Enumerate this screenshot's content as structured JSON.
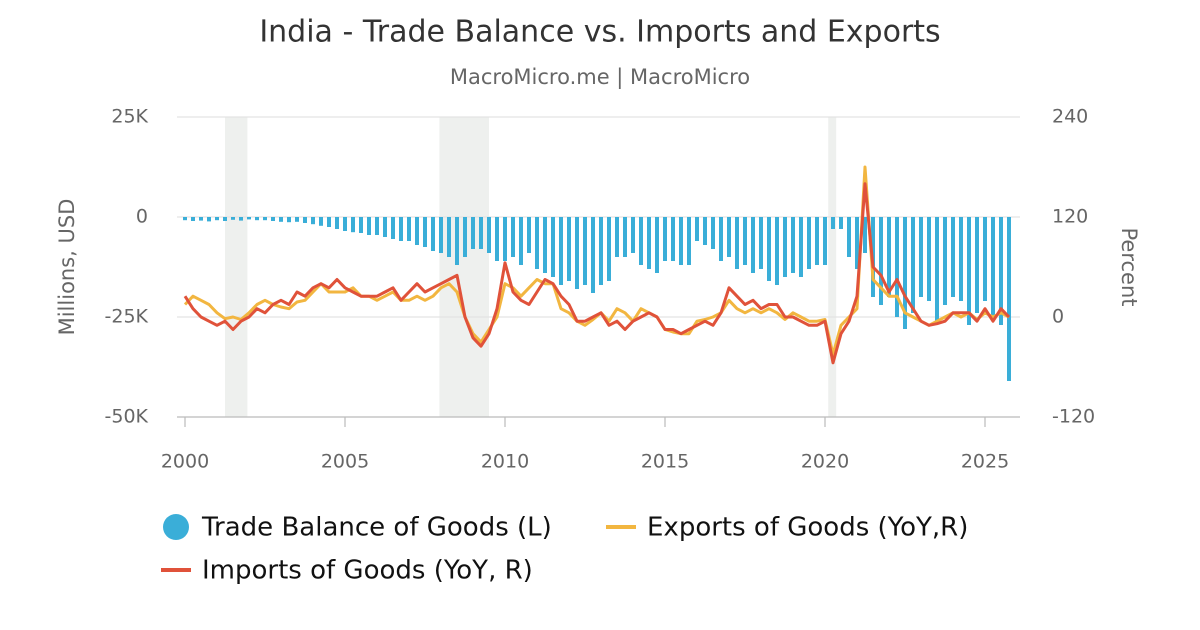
{
  "chart_data": {
    "type": "bar-line",
    "title": "India - Trade Balance vs. Imports and Exports",
    "subtitle": "MacroMicro.me | MacroMicro",
    "y_label": "Millions, USD",
    "y2_label": "Percent",
    "x": [
      2000,
      2000.25,
      2000.5,
      2000.75,
      2001,
      2001.25,
      2001.5,
      2001.75,
      2002,
      2002.25,
      2002.5,
      2002.75,
      2003,
      2003.25,
      2003.5,
      2003.75,
      2004,
      2004.25,
      2004.5,
      2004.75,
      2005,
      2005.25,
      2005.5,
      2005.75,
      2006,
      2006.25,
      2006.5,
      2006.75,
      2007,
      2007.25,
      2007.5,
      2007.75,
      2008,
      2008.25,
      2008.5,
      2008.75,
      2009,
      2009.25,
      2009.5,
      2009.75,
      2010,
      2010.25,
      2010.5,
      2010.75,
      2011,
      2011.25,
      2011.5,
      2011.75,
      2012,
      2012.25,
      2012.5,
      2012.75,
      2013,
      2013.25,
      2013.5,
      2013.75,
      2014,
      2014.25,
      2014.5,
      2014.75,
      2015,
      2015.25,
      2015.5,
      2015.75,
      2016,
      2016.25,
      2016.5,
      2016.75,
      2017,
      2017.25,
      2017.5,
      2017.75,
      2018,
      2018.25,
      2018.5,
      2018.75,
      2019,
      2019.25,
      2019.5,
      2019.75,
      2020,
      2020.25,
      2020.5,
      2020.75,
      2021,
      2021.25,
      2021.5,
      2021.75,
      2022,
      2022.25,
      2022.5,
      2022.75,
      2023,
      2023.25,
      2023.5,
      2023.75,
      2024,
      2024.25,
      2024.5,
      2024.75,
      2025,
      2025.25,
      2025.5,
      2025.75
    ],
    "xlim": [
      2000,
      2026
    ],
    "xticks": [
      2000,
      2005,
      2010,
      2015,
      2020,
      2025
    ],
    "ylim": [
      -50000,
      25000
    ],
    "yticks": [
      {
        "value": 25000,
        "label": "25K"
      },
      {
        "value": 0,
        "label": "0"
      },
      {
        "value": -25000,
        "label": "-25K"
      },
      {
        "value": -50000,
        "label": "-50K"
      }
    ],
    "y2lim": [
      -120,
      240
    ],
    "y2ticks": [
      240,
      120,
      0,
      -120
    ],
    "grid": true,
    "shaded_periods": [
      [
        2001.25,
        2001.95
      ],
      [
        2007.95,
        2009.5
      ],
      [
        2020.1,
        2020.35
      ]
    ],
    "series": [
      {
        "name": "Trade Balance of Goods (L)",
        "kind": "bar",
        "color": "#3aaed8",
        "values": [
          -800,
          -1000,
          -900,
          -1100,
          -800,
          -1000,
          -700,
          -900,
          -600,
          -800,
          -800,
          -1000,
          -1200,
          -1300,
          -1200,
          -1500,
          -1800,
          -2200,
          -2500,
          -3000,
          -3500,
          -3800,
          -4000,
          -4500,
          -4500,
          -5000,
          -5500,
          -6000,
          -6000,
          -7000,
          -7500,
          -8500,
          -9000,
          -10000,
          -12000,
          -10000,
          -8000,
          -8000,
          -9000,
          -11000,
          -11000,
          -10000,
          -12000,
          -9000,
          -13000,
          -14000,
          -15000,
          -17000,
          -16000,
          -18000,
          -17000,
          -19000,
          -17000,
          -16000,
          -10000,
          -10000,
          -9000,
          -12000,
          -13000,
          -14000,
          -11000,
          -11000,
          -12000,
          -12000,
          -6000,
          -7000,
          -8000,
          -11000,
          -10000,
          -13000,
          -12000,
          -14000,
          -13000,
          -16000,
          -17000,
          -15000,
          -14000,
          -15000,
          -13000,
          -12000,
          -12000,
          -3000,
          -3000,
          -10000,
          -13000,
          -9000,
          -20000,
          -22000,
          -20000,
          -25000,
          -28000,
          -24000,
          -20000,
          -21000,
          -26000,
          -22000,
          -20000,
          -21000,
          -27000,
          -24000,
          -21000,
          -25000,
          -27000,
          -41000
        ]
      },
      {
        "name": "Exports of Goods (YoY,R)",
        "kind": "line",
        "axis": "y2",
        "color": "#f2b640",
        "values": [
          15,
          25,
          20,
          15,
          5,
          -2,
          0,
          -3,
          5,
          15,
          20,
          15,
          12,
          10,
          18,
          20,
          30,
          40,
          30,
          30,
          30,
          35,
          25,
          25,
          20,
          25,
          30,
          20,
          20,
          25,
          20,
          25,
          35,
          40,
          30,
          0,
          -20,
          -30,
          -15,
          0,
          40,
          35,
          25,
          35,
          45,
          40,
          40,
          10,
          5,
          -5,
          -10,
          -3,
          5,
          -5,
          10,
          5,
          -5,
          10,
          5,
          0,
          -15,
          -18,
          -20,
          -20,
          -5,
          -3,
          0,
          5,
          20,
          10,
          5,
          10,
          5,
          10,
          5,
          -3,
          5,
          0,
          -5,
          -5,
          -3,
          -45,
          -10,
          0,
          10,
          180,
          45,
          35,
          25,
          25,
          5,
          0,
          -5,
          -10,
          -5,
          0,
          5,
          0,
          5,
          -3,
          5,
          0,
          5,
          0
        ]
      },
      {
        "name": "Imports of Goods (YoY, R)",
        "kind": "line",
        "axis": "y2",
        "color": "#e0523a",
        "values": [
          25,
          10,
          0,
          -5,
          -10,
          -5,
          -15,
          -5,
          0,
          10,
          5,
          15,
          20,
          15,
          30,
          25,
          35,
          40,
          35,
          45,
          35,
          30,
          25,
          25,
          25,
          30,
          35,
          20,
          30,
          40,
          30,
          35,
          40,
          45,
          50,
          0,
          -25,
          -35,
          -20,
          10,
          65,
          30,
          20,
          15,
          30,
          45,
          40,
          25,
          15,
          -5,
          -5,
          0,
          5,
          -10,
          -5,
          -15,
          -5,
          0,
          5,
          0,
          -15,
          -15,
          -20,
          -15,
          -10,
          -5,
          -10,
          5,
          35,
          25,
          15,
          20,
          10,
          15,
          15,
          0,
          0,
          -5,
          -10,
          -10,
          -5,
          -55,
          -20,
          -5,
          25,
          160,
          60,
          50,
          30,
          45,
          25,
          10,
          -5,
          -10,
          -8,
          -5,
          5,
          5,
          5,
          -5,
          10,
          -5,
          10,
          0
        ]
      }
    ]
  }
}
